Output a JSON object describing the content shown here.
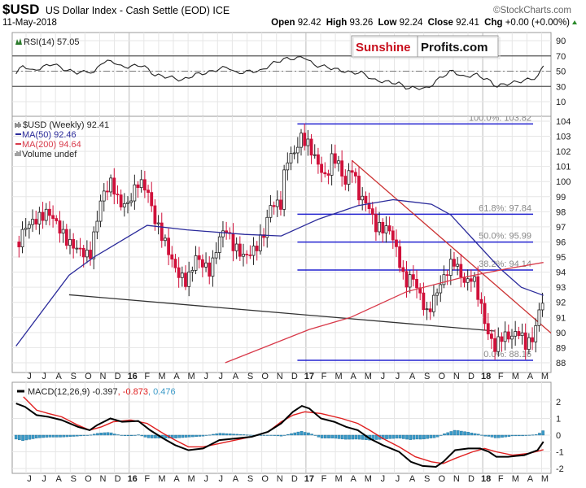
{
  "header": {
    "symbol": "$USD",
    "name": "US Dollar Index - Cash Settle (EOD) ICE",
    "watermark": "©StockCharts.com",
    "date": "11-May-2018",
    "open_label": "Open",
    "open_value": "92.42",
    "high_label": "High",
    "high_value": "93.26",
    "low_label": "Low",
    "low_value": "92.24",
    "close_label": "Close",
    "close_value": "92.41",
    "chg_label": "Chg",
    "chg_value": "+0.00 (+0.00%)",
    "chg_icon": "up-triangle-icon"
  },
  "logo": {
    "part1": "Sunshine",
    "part2": "Profits.com"
  },
  "colors": {
    "up_candle": "#ffffff",
    "down_candle": "#d0103a",
    "ma50": "#2b2b9b",
    "ma200": "#d83a4a",
    "fib": "#2323d0",
    "trend_red": "#cc3333",
    "trend_black": "#333333",
    "macd": "#000000",
    "signal": "#e02020",
    "histogram": "#3a9ac8",
    "rsi": "#222222"
  },
  "x_axis": {
    "unit": "months since Jun 2015",
    "labels": [
      "J",
      "J",
      "A",
      "S",
      "O",
      "N",
      "D",
      "16",
      "F",
      "M",
      "A",
      "M",
      "J",
      "J",
      "A",
      "S",
      "O",
      "N",
      "D",
      "17",
      "F",
      "M",
      "A",
      "M",
      "J",
      "J",
      "A",
      "S",
      "O",
      "N",
      "D",
      "18",
      "F",
      "M",
      "A",
      "M"
    ],
    "year_labels": [
      "16",
      "17",
      "18"
    ]
  },
  "chart_data": [
    {
      "type": "line",
      "title": "RSI(14) 57.05",
      "ylim": [
        0,
        100
      ],
      "yticks": [
        "90",
        "70",
        "50",
        "30",
        "10"
      ],
      "ytick_values": [
        90,
        70,
        50,
        30,
        10
      ],
      "bands": [
        70,
        30
      ],
      "midline": 50,
      "series": [
        {
          "name": "RSI(14)",
          "points": [
            [
              -0.9,
              47
            ],
            [
              -0.4,
              58
            ],
            [
              0.2,
              50
            ],
            [
              1.0,
              56
            ],
            [
              1.6,
              60
            ],
            [
              2.4,
              52
            ],
            [
              3.3,
              48
            ],
            [
              4.1,
              50
            ],
            [
              4.4,
              47
            ],
            [
              4.9,
              62
            ],
            [
              5.7,
              63
            ],
            [
              6.3,
              55
            ],
            [
              7.1,
              57
            ],
            [
              7.7,
              58
            ],
            [
              8.5,
              45
            ],
            [
              9.6,
              42
            ],
            [
              10.4,
              38
            ],
            [
              11.3,
              46
            ],
            [
              12.1,
              48
            ],
            [
              12.9,
              53
            ],
            [
              13.5,
              56
            ],
            [
              14.0,
              47
            ],
            [
              14.9,
              50
            ],
            [
              15.7,
              50
            ],
            [
              16.5,
              60
            ],
            [
              17.3,
              66
            ],
            [
              18.2,
              67
            ],
            [
              18.7,
              69
            ],
            [
              19.3,
              58
            ],
            [
              20.1,
              56
            ],
            [
              20.9,
              52
            ],
            [
              21.8,
              48
            ],
            [
              22.6,
              48
            ],
            [
              23.4,
              38
            ],
            [
              24.3,
              36
            ],
            [
              25.1,
              34
            ],
            [
              25.6,
              28
            ],
            [
              26.5,
              28
            ],
            [
              27.0,
              27
            ],
            [
              27.8,
              40
            ],
            [
              28.7,
              51
            ],
            [
              29.5,
              42
            ],
            [
              30.3,
              46
            ],
            [
              31.2,
              38
            ],
            [
              31.7,
              30
            ],
            [
              32.3,
              33
            ],
            [
              33.4,
              37
            ],
            [
              34.5,
              42
            ],
            [
              34.9,
              57
            ]
          ]
        }
      ]
    },
    {
      "type": "candlestick",
      "title": "$USD (Weekly) 92.41",
      "legend": [
        "$USD (Weekly) 92.41",
        "MA(50) 92.46",
        "MA(200) 94.64",
        "Volume undef"
      ],
      "ylim": [
        87.6,
        104.3
      ],
      "yticks": [
        "104",
        "103",
        "102",
        "101",
        "100",
        "99",
        "98",
        "97",
        "96",
        "95",
        "94",
        "93",
        "92",
        "91",
        "90",
        "89",
        "88"
      ],
      "ytick_values": [
        104,
        103,
        102,
        101,
        100,
        99,
        98,
        97,
        96,
        95,
        94,
        93,
        92,
        91,
        90,
        89,
        88
      ],
      "close_path": [
        [
          -0.7,
          96
        ],
        [
          -0.3,
          97
        ],
        [
          1.3,
          98
        ],
        [
          1.8,
          97.3
        ],
        [
          2.6,
          96
        ],
        [
          4.1,
          95
        ],
        [
          4.9,
          99
        ],
        [
          5.6,
          100
        ],
        [
          6.1,
          98.5
        ],
        [
          6.7,
          98.5
        ],
        [
          7.4,
          100
        ],
        [
          8.0,
          99.5
        ],
        [
          8.5,
          97.5
        ],
        [
          9.2,
          96
        ],
        [
          10.0,
          94
        ],
        [
          10.7,
          93.3
        ],
        [
          11.3,
          95
        ],
        [
          12.3,
          94
        ],
        [
          12.8,
          96
        ],
        [
          13.3,
          97
        ],
        [
          13.8,
          95.8
        ],
        [
          14.6,
          95
        ],
        [
          15.3,
          95.5
        ],
        [
          15.9,
          96.5
        ],
        [
          16.4,
          98.5
        ],
        [
          17.1,
          98.5
        ],
        [
          17.4,
          101.4
        ],
        [
          18.1,
          102
        ],
        [
          18.4,
          103
        ],
        [
          18.9,
          102.5
        ],
        [
          19.7,
          101
        ],
        [
          20.2,
          100
        ],
        [
          20.4,
          101.5
        ],
        [
          20.9,
          101.5
        ],
        [
          21.4,
          99.8
        ],
        [
          21.9,
          101
        ],
        [
          22.4,
          99
        ],
        [
          23.0,
          98.5
        ],
        [
          23.5,
          97
        ],
        [
          24.5,
          96.8
        ],
        [
          25.0,
          95.2
        ],
        [
          25.5,
          93.2
        ],
        [
          26.0,
          93.8
        ],
        [
          27.0,
          91.2
        ],
        [
          27.8,
          93
        ],
        [
          28.6,
          94.5
        ],
        [
          28.8,
          94.8
        ],
        [
          29.6,
          93.2
        ],
        [
          30.1,
          93.8
        ],
        [
          30.6,
          92
        ],
        [
          31.1,
          90
        ],
        [
          31.6,
          89
        ],
        [
          32.1,
          89.8
        ],
        [
          32.7,
          89.7
        ],
        [
          33.2,
          90.1
        ],
        [
          33.7,
          89.2
        ],
        [
          34.2,
          89.6
        ],
        [
          34.5,
          91
        ],
        [
          34.9,
          92.41
        ]
      ],
      "ma50": {
        "name": "MA(50)",
        "last": 92.46,
        "points": [
          [
            -0.9,
            89.1
          ],
          [
            2.7,
            93.8
          ],
          [
            4.4,
            95
          ],
          [
            8.0,
            97.1
          ],
          [
            10.7,
            96.8
          ],
          [
            14.6,
            96.5
          ],
          [
            17.1,
            96.4
          ],
          [
            19.6,
            97.5
          ],
          [
            22.3,
            98.4
          ],
          [
            24.7,
            98.8
          ],
          [
            27.3,
            98.5
          ],
          [
            28.6,
            97.8
          ],
          [
            30.3,
            96
          ],
          [
            32.0,
            94.2
          ],
          [
            33.4,
            93
          ],
          [
            34.9,
            92.46
          ]
        ]
      },
      "ma200": {
        "name": "MA(200)",
        "last": 94.64,
        "points": [
          [
            13.3,
            88
          ],
          [
            19.0,
            90.2
          ],
          [
            21.8,
            91
          ],
          [
            25.6,
            92.7
          ],
          [
            29.2,
            93.6
          ],
          [
            32.3,
            94.2
          ],
          [
            34.9,
            94.64
          ]
        ]
      },
      "fibonacci": {
        "start": 18.2,
        "end": 34.2,
        "levels": [
          {
            "label": "100.0%: 103.82",
            "value": 103.82
          },
          {
            "label": "61.8%: 97.84",
            "value": 97.84
          },
          {
            "label": "50.0%: 95.99",
            "value": 95.99
          },
          {
            "label": "38.2%: 94.14",
            "value": 94.14
          },
          {
            "label": "0.0%: 88.16",
            "value": 88.16
          }
        ]
      },
      "trendlines": [
        {
          "name": "red-downtrend",
          "from": [
            21.9,
            101.4
          ],
          "to": [
            36.2,
            89.3
          ]
        },
        {
          "name": "black-support",
          "from": [
            2.7,
            92.5
          ],
          "to": [
            31.6,
            90.1
          ]
        }
      ]
    },
    {
      "type": "line",
      "title": "MACD(12,26,9)",
      "legend_macd": "MACD(12,26,9) -0.397",
      "legend_signal": ", -0.873",
      "legend_hist": ", 0.476",
      "ylim": [
        -2.3,
        2.6
      ],
      "yticks": [
        "2",
        "1",
        "0",
        "-1",
        "-2"
      ],
      "ytick_values": [
        2,
        1,
        0,
        -1,
        -2
      ],
      "macd": [
        [
          -0.9,
          1.9
        ],
        [
          -0.3,
          1.7
        ],
        [
          0.5,
          1.2
        ],
        [
          1.3,
          1.1
        ],
        [
          2.2,
          0.9
        ],
        [
          3.3,
          0.5
        ],
        [
          4.1,
          0.3
        ],
        [
          4.6,
          0.6
        ],
        [
          5.5,
          1.0
        ],
        [
          6.3,
          0.8
        ],
        [
          7.4,
          0.85
        ],
        [
          8.2,
          0.3
        ],
        [
          9.1,
          -0.2
        ],
        [
          9.9,
          -0.6
        ],
        [
          10.8,
          -0.9
        ],
        [
          11.8,
          -0.8
        ],
        [
          12.9,
          -0.3
        ],
        [
          14.0,
          -0.2
        ],
        [
          15.1,
          -0.1
        ],
        [
          16.2,
          0.2
        ],
        [
          17.1,
          0.7
        ],
        [
          17.9,
          1.4
        ],
        [
          18.5,
          1.75
        ],
        [
          19.0,
          1.6
        ],
        [
          19.8,
          1.0
        ],
        [
          20.7,
          0.8
        ],
        [
          21.5,
          0.5
        ],
        [
          22.3,
          0.3
        ],
        [
          23.1,
          -0.2
        ],
        [
          24.0,
          -0.6
        ],
        [
          25.1,
          -1.0
        ],
        [
          25.9,
          -1.6
        ],
        [
          26.7,
          -1.85
        ],
        [
          27.6,
          -1.9
        ],
        [
          28.1,
          -1.6
        ],
        [
          28.9,
          -0.9
        ],
        [
          29.8,
          -0.8
        ],
        [
          30.6,
          -0.8
        ],
        [
          31.2,
          -1.0
        ],
        [
          31.7,
          -1.3
        ],
        [
          32.5,
          -1.3
        ],
        [
          33.6,
          -1.2
        ],
        [
          34.5,
          -0.9
        ],
        [
          34.9,
          -0.397
        ]
      ],
      "signal": [
        [
          -0.4,
          2.3
        ],
        [
          0.5,
          1.5
        ],
        [
          1.3,
          1.3
        ],
        [
          2.2,
          1.1
        ],
        [
          3.3,
          0.6
        ],
        [
          4.1,
          0.3
        ],
        [
          4.9,
          0.5
        ],
        [
          5.7,
          0.8
        ],
        [
          6.9,
          0.9
        ],
        [
          8.0,
          0.7
        ],
        [
          9.1,
          0.1
        ],
        [
          9.9,
          -0.3
        ],
        [
          10.8,
          -0.7
        ],
        [
          11.8,
          -0.7
        ],
        [
          12.9,
          -0.5
        ],
        [
          14.0,
          -0.3
        ],
        [
          15.1,
          -0.1
        ],
        [
          16.2,
          0.2
        ],
        [
          17.1,
          0.8
        ],
        [
          17.9,
          1.2
        ],
        [
          18.7,
          1.4
        ],
        [
          19.8,
          1.3
        ],
        [
          21.2,
          1.0
        ],
        [
          22.3,
          0.7
        ],
        [
          23.1,
          0.3
        ],
        [
          24.0,
          -0.2
        ],
        [
          25.1,
          -0.7
        ],
        [
          26.2,
          -1.3
        ],
        [
          27.3,
          -1.6
        ],
        [
          28.1,
          -1.7
        ],
        [
          28.9,
          -1.4
        ],
        [
          30.1,
          -1.0
        ],
        [
          30.9,
          -0.8
        ],
        [
          31.7,
          -1.0
        ],
        [
          32.8,
          -1.2
        ],
        [
          33.9,
          -1.1
        ],
        [
          34.9,
          -0.873
        ]
      ]
    }
  ]
}
